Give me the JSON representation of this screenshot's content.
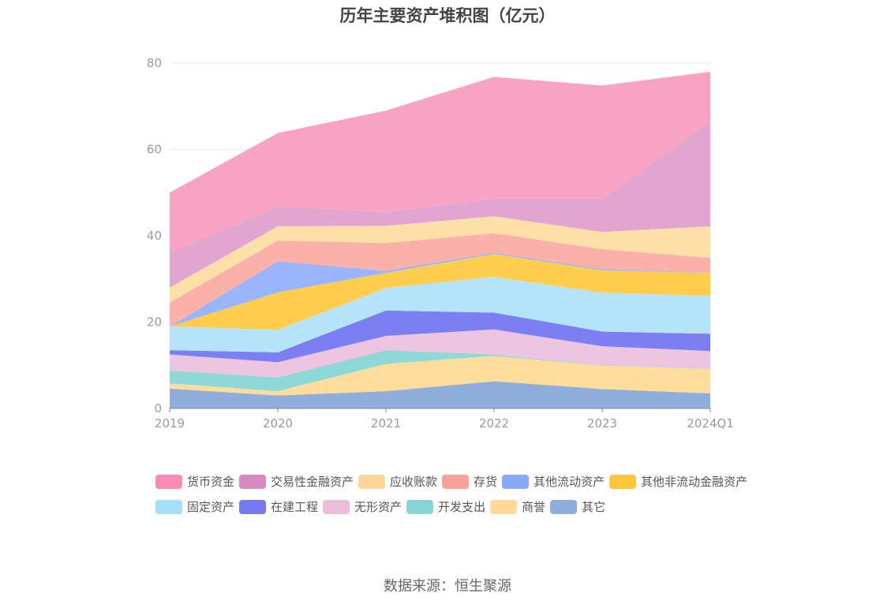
{
  "chart_data": {
    "type": "area",
    "stacked": true,
    "title": "历年主要资产堆积图（亿元）",
    "categories": [
      "2019",
      "2020",
      "2021",
      "2022",
      "2023",
      "2024Q1"
    ],
    "ylim": [
      0,
      80
    ],
    "yticks": [
      0,
      20,
      40,
      60,
      80
    ],
    "grid": true,
    "legend_position": "bottom",
    "series": [
      {
        "name": "其它",
        "color": "#8faedb",
        "values": [
          4.6,
          3.0,
          4.0,
          6.3,
          4.5,
          3.5
        ]
      },
      {
        "name": "商誉",
        "color": "#fddc9c",
        "values": [
          1.2,
          1.0,
          6.3,
          5.9,
          5.4,
          5.7
        ]
      },
      {
        "name": "开发支出",
        "color": "#8ed8d8",
        "values": [
          3.0,
          3.2,
          3.2,
          0.3,
          0.1,
          0.1
        ]
      },
      {
        "name": "无形资产",
        "color": "#eec5e0",
        "values": [
          3.7,
          3.5,
          3.3,
          5.8,
          4.4,
          4.0
        ]
      },
      {
        "name": "在建工程",
        "color": "#7b7ff2",
        "values": [
          1.0,
          2.3,
          5.9,
          3.9,
          3.4,
          4.0
        ]
      },
      {
        "name": "固定资产",
        "color": "#b5e4fa",
        "values": [
          5.5,
          5.2,
          5.2,
          8.3,
          9.0,
          8.8
        ]
      },
      {
        "name": "其他非流动金融资产",
        "color": "#ffcd4d",
        "values": [
          0.0,
          8.7,
          3.5,
          5.3,
          5.2,
          5.3
        ]
      },
      {
        "name": "其他流动资产",
        "color": "#9bb5fc",
        "values": [
          0.0,
          7.2,
          0.5,
          0.3,
          0.3,
          0.1
        ]
      },
      {
        "name": "存货",
        "color": "#fbb1a9",
        "values": [
          5.5,
          4.8,
          6.4,
          4.5,
          4.6,
          3.4
        ]
      },
      {
        "name": "应收账款",
        "color": "#fde0a8",
        "values": [
          3.5,
          3.3,
          4.0,
          3.9,
          4.0,
          7.3
        ]
      },
      {
        "name": "交易性金融资产",
        "color": "#e2a5cf",
        "values": [
          8.0,
          4.6,
          3.2,
          4.1,
          7.7,
          24.3
        ]
      },
      {
        "name": "货币资金",
        "color": "#f8a3c3",
        "values": [
          14.0,
          17.0,
          23.5,
          28.2,
          26.2,
          11.5
        ]
      }
    ],
    "legend": [
      {
        "name": "货币资金",
        "color": "#f98bb4"
      },
      {
        "name": "交易性金融资产",
        "color": "#d889c0"
      },
      {
        "name": "应收账款",
        "color": "#ffd699"
      },
      {
        "name": "存货",
        "color": "#f7a399"
      },
      {
        "name": "其他流动资产",
        "color": "#8aa8f8"
      },
      {
        "name": "其他非流动金融资产",
        "color": "#ffc53d"
      },
      {
        "name": "固定资产",
        "color": "#a6dffa"
      },
      {
        "name": "在建工程",
        "color": "#7578f0"
      },
      {
        "name": "无形资产",
        "color": "#ebbcdc"
      },
      {
        "name": "开发支出",
        "color": "#87d5d6"
      },
      {
        "name": "商誉",
        "color": "#ffd999"
      },
      {
        "name": "其它",
        "color": "#8faedb"
      }
    ]
  },
  "footer": {
    "source": "数据来源：恒生聚源"
  }
}
